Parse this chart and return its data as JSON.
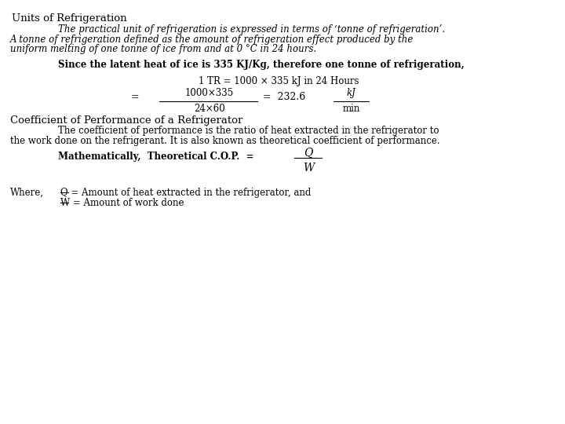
{
  "background_color": "#ffffff",
  "title": "Units of Refrigeration",
  "para1_line1": "The practical unit of refrigeration is expressed in terms of ‘tonne of refrigeration’.",
  "para1_line2": "A tonne of refrigeration defined as the amount of refrigeration effect produced by the",
  "para1_line3": "uniform melting of one tonne of ice from and at 0 °C in 24 hours.",
  "since_line": "Since the latent heat of ice is 335 KJ/Kg, therefore one tonne of refrigeration,",
  "eq1": "1 TR = 1000 × 335 kJ in 24 Hours",
  "eq2_lhs": "=",
  "eq2_num": "1000×335",
  "eq2_den": "24×60",
  "eq2_rhs": "=  232.6",
  "eq2_unit_num": "kJ",
  "eq2_unit_den": "min",
  "coeff_title": "Coefficient of Performance of a Refrigerator",
  "coeff_para1": "The coefficient of performance is the ratio of heat extracted in the refrigerator to",
  "coeff_para2": "the work done on the refrigerant. It is also known as theoretical coefficient of performance.",
  "math_label": "Mathematically,  Theoretical C.O.P.  =",
  "cop_num": "Q",
  "cop_den": "W",
  "where_label": "Where,",
  "where_q": "Q = Amount of heat extracted in the refrigerator, and",
  "where_w": "W = Amount of work done",
  "fs_title": 9.5,
  "fs_body": 8.5,
  "fs_math": 9.0
}
